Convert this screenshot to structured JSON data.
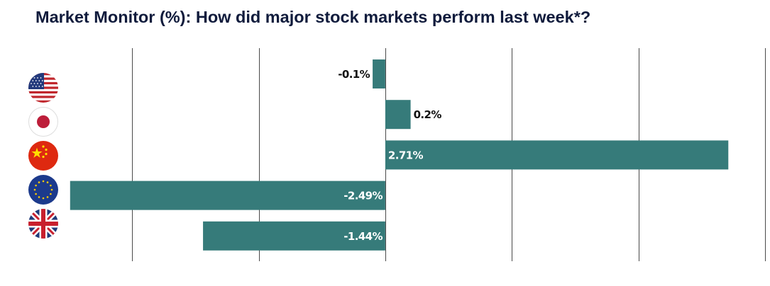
{
  "title": "Market Monitor (%): How did major stock markets perform last week*?",
  "chart_data": {
    "type": "bar",
    "orientation": "horizontal",
    "categories": [
      "US",
      "Japan",
      "China",
      "Eurozone",
      "UK"
    ],
    "category_icons": [
      "us-flag-icon",
      "japan-flag-icon",
      "china-flag-icon",
      "eu-flag-icon",
      "uk-flag-icon"
    ],
    "values": [
      -0.1,
      0.2,
      2.71,
      -2.49,
      -1.44
    ],
    "labels": [
      "-0.1%",
      "0.2%",
      "2.71%",
      "-2.49%",
      "-1.44%"
    ],
    "xlim": [
      -2.5,
      3.0
    ],
    "grid_ticks": [
      -2.0,
      -1.0,
      0.0,
      1.0,
      2.0,
      3.0
    ],
    "grid": true,
    "bar_color": "#367b7a",
    "label_dark": "#111111",
    "label_light": "#ffffff"
  }
}
